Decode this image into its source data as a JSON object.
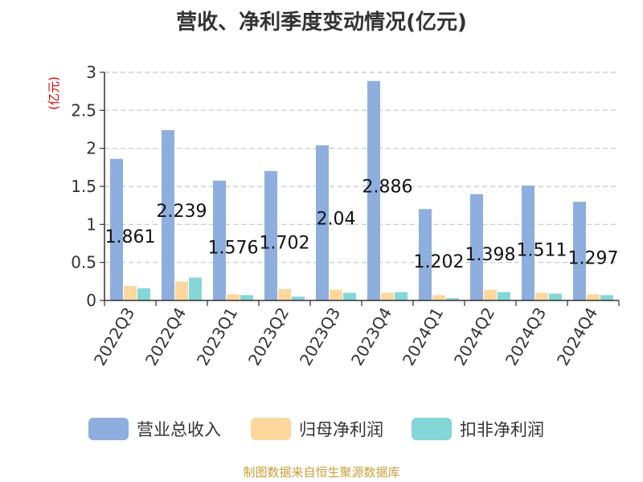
{
  "chart_data": {
    "type": "bar",
    "title": "营收、净利季度变动情况(亿元)",
    "unit_label": "(亿元)",
    "categories": [
      "2022Q3",
      "2022Q4",
      "2023Q1",
      "2023Q2",
      "2023Q3",
      "2023Q4",
      "2024Q1",
      "2024Q2",
      "2024Q3",
      "2024Q4"
    ],
    "series": [
      {
        "name": "营业总收入",
        "color": "#8eaedd",
        "values": [
          1.861,
          2.239,
          1.576,
          1.702,
          2.04,
          2.886,
          1.202,
          1.398,
          1.511,
          1.297
        ]
      },
      {
        "name": "归母净利润",
        "color": "#fdd79c",
        "values": [
          0.19,
          0.25,
          0.08,
          0.15,
          0.14,
          0.1,
          0.07,
          0.14,
          0.1,
          0.08
        ]
      },
      {
        "name": "扣非净利润",
        "color": "#85d6d7",
        "values": [
          0.16,
          0.3,
          0.07,
          0.05,
          0.1,
          0.11,
          0.03,
          0.11,
          0.09,
          0.07
        ]
      }
    ],
    "data_labels": [
      "1.861",
      "2.239",
      "1.576",
      "1.702",
      "2.04",
      "2.886",
      "1.202",
      "1.398",
      "1.511",
      "1.297"
    ],
    "yticks": [
      "0",
      "0.5",
      "1",
      "1.5",
      "2",
      "2.5",
      "3"
    ],
    "ylim": [
      0,
      3
    ],
    "grid": true,
    "legend_position": "bottom"
  },
  "source": "制图数据来自恒生聚源数据库"
}
